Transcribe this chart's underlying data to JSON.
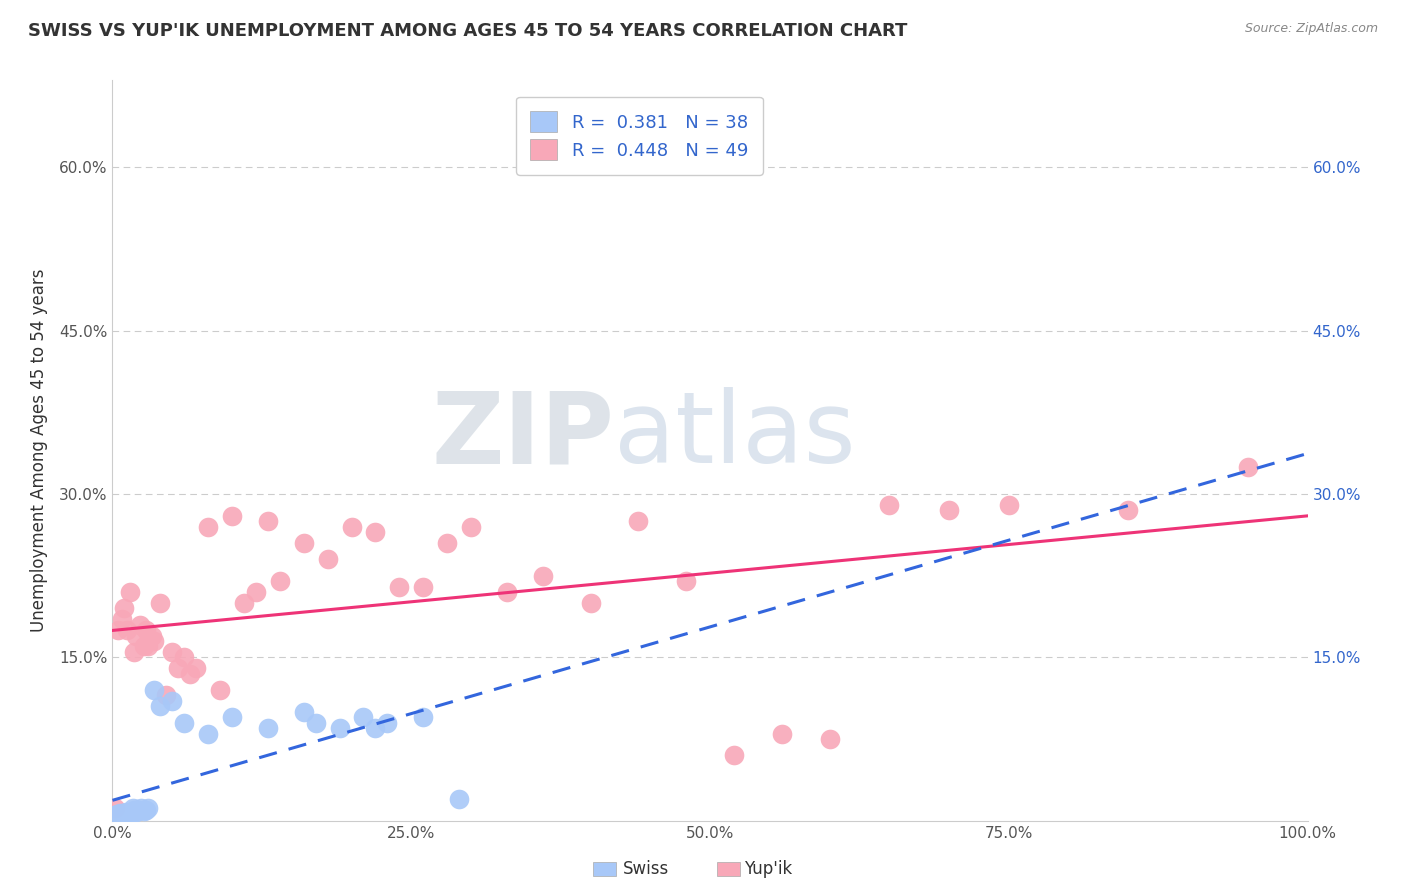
{
  "title": "SWISS VS YUP'IK UNEMPLOYMENT AMONG AGES 45 TO 54 YEARS CORRELATION CHART",
  "source": "Source: ZipAtlas.com",
  "ylabel": "Unemployment Among Ages 45 to 54 years",
  "xlim": [
    0,
    1.0
  ],
  "ylim": [
    0,
    0.68
  ],
  "xticks": [
    0.0,
    0.25,
    0.5,
    0.75,
    1.0
  ],
  "xtick_labels": [
    "0.0%",
    "25.0%",
    "50.0%",
    "75.0%",
    "100.0%"
  ],
  "ytick_positions": [
    0.0,
    0.15,
    0.3,
    0.45,
    0.6
  ],
  "ytick_labels": [
    "",
    "15.0%",
    "30.0%",
    "45.0%",
    "60.0%"
  ],
  "grid_color": "#cccccc",
  "swiss_color": "#a8c8f8",
  "yupik_color": "#f8a8b8",
  "swiss_line_color": "#3366dd",
  "yupik_line_color": "#ee3377",
  "swiss_R": 0.381,
  "swiss_N": 38,
  "yupik_R": 0.448,
  "yupik_N": 49,
  "swiss_x": [
    0.002,
    0.003,
    0.004,
    0.005,
    0.006,
    0.007,
    0.008,
    0.009,
    0.01,
    0.011,
    0.012,
    0.013,
    0.014,
    0.015,
    0.016,
    0.017,
    0.018,
    0.02,
    0.022,
    0.024,
    0.026,
    0.028,
    0.03,
    0.035,
    0.04,
    0.05,
    0.06,
    0.08,
    0.1,
    0.13,
    0.16,
    0.17,
    0.19,
    0.21,
    0.22,
    0.23,
    0.26,
    0.29
  ],
  "swiss_y": [
    0.005,
    0.004,
    0.006,
    0.005,
    0.007,
    0.006,
    0.005,
    0.007,
    0.006,
    0.008,
    0.006,
    0.007,
    0.005,
    0.008,
    0.007,
    0.012,
    0.01,
    0.008,
    0.01,
    0.012,
    0.009,
    0.01,
    0.012,
    0.12,
    0.105,
    0.11,
    0.09,
    0.08,
    0.095,
    0.085,
    0.1,
    0.09,
    0.085,
    0.095,
    0.085,
    0.09,
    0.095,
    0.02
  ],
  "yupik_x": [
    0.002,
    0.005,
    0.008,
    0.01,
    0.012,
    0.015,
    0.018,
    0.02,
    0.023,
    0.026,
    0.028,
    0.03,
    0.033,
    0.035,
    0.04,
    0.045,
    0.05,
    0.055,
    0.06,
    0.065,
    0.07,
    0.08,
    0.09,
    0.1,
    0.11,
    0.12,
    0.13,
    0.14,
    0.16,
    0.18,
    0.2,
    0.22,
    0.24,
    0.26,
    0.28,
    0.3,
    0.33,
    0.36,
    0.4,
    0.44,
    0.48,
    0.52,
    0.56,
    0.6,
    0.65,
    0.7,
    0.75,
    0.85,
    0.95
  ],
  "yupik_y": [
    0.012,
    0.175,
    0.185,
    0.195,
    0.175,
    0.21,
    0.155,
    0.17,
    0.18,
    0.16,
    0.175,
    0.16,
    0.17,
    0.165,
    0.2,
    0.115,
    0.155,
    0.14,
    0.15,
    0.135,
    0.14,
    0.27,
    0.12,
    0.28,
    0.2,
    0.21,
    0.275,
    0.22,
    0.255,
    0.24,
    0.27,
    0.265,
    0.215,
    0.215,
    0.255,
    0.27,
    0.21,
    0.225,
    0.2,
    0.275,
    0.22,
    0.06,
    0.08,
    0.075,
    0.29,
    0.285,
    0.29,
    0.285,
    0.325
  ],
  "background_color": "#ffffff",
  "title_fontsize": 13,
  "label_fontsize": 12,
  "tick_fontsize": 11,
  "right_tick_color": "#3366cc",
  "watermark_zip_color": "#c8d8e8",
  "watermark_atlas_color": "#b8c8d8"
}
